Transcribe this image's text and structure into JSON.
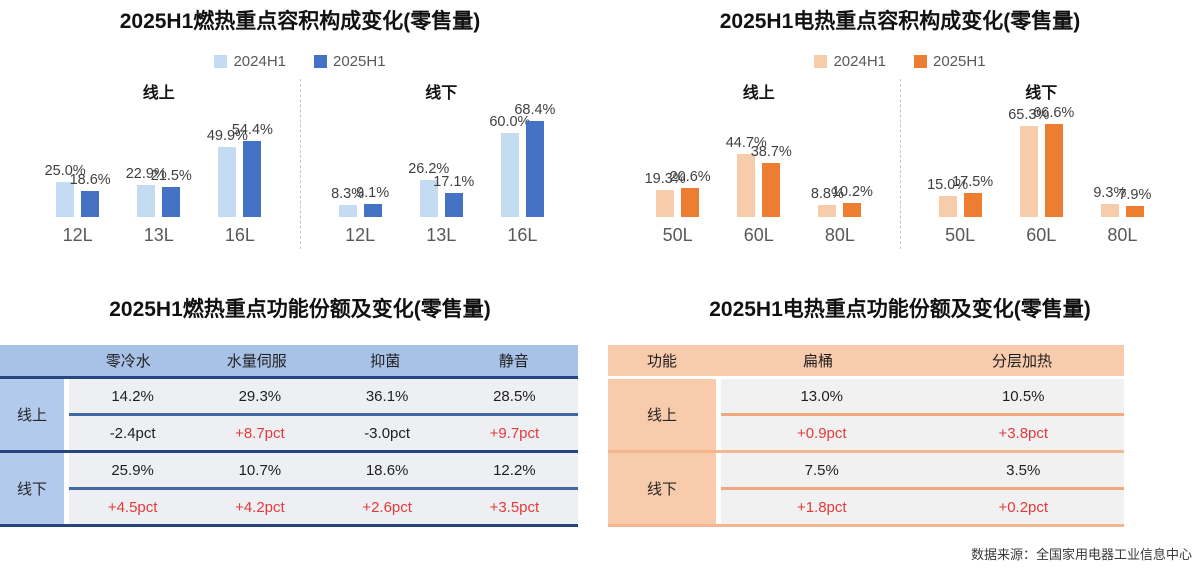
{
  "source": "数据来源：全国家用电器工业信息中心",
  "colors": {
    "increase": "#E23B3B",
    "decrease": "#1F1F1F"
  },
  "chart_data": [
    {
      "type": "bar",
      "title": "2025H1燃热重点容积构成变化(零售量)",
      "legend": [
        "2024H1",
        "2025H1"
      ],
      "legend_position": "top",
      "colors": [
        "#C3DCF2",
        "#4472C4"
      ],
      "value_suffix": "%",
      "ylim": [
        0,
        75
      ],
      "grid": false,
      "groups": [
        {
          "label": "线上",
          "categories": [
            "12L",
            "13L",
            "16L"
          ],
          "series": [
            {
              "name": "2024H1",
              "values": [
                25.0,
                22.9,
                49.9
              ]
            },
            {
              "name": "2025H1",
              "values": [
                18.6,
                21.5,
                54.4
              ]
            }
          ]
        },
        {
          "label": "线下",
          "categories": [
            "12L",
            "13L",
            "16L"
          ],
          "series": [
            {
              "name": "2024H1",
              "values": [
                8.3,
                26.2,
                60.0
              ]
            },
            {
              "name": "2025H1",
              "values": [
                9.1,
                17.1,
                68.4
              ]
            }
          ]
        }
      ]
    },
    {
      "type": "bar",
      "title": "2025H1电热重点容积构成变化(零售量)",
      "legend": [
        "2024H1",
        "2025H1"
      ],
      "legend_position": "top",
      "colors": [
        "#F6CCAB",
        "#ED7D31"
      ],
      "value_suffix": "%",
      "ylim": [
        0,
        75
      ],
      "grid": false,
      "groups": [
        {
          "label": "线上",
          "categories": [
            "50L",
            "60L",
            "80L"
          ],
          "series": [
            {
              "name": "2024H1",
              "values": [
                19.3,
                44.7,
                8.8
              ]
            },
            {
              "name": "2025H1",
              "values": [
                20.6,
                38.7,
                10.2
              ]
            }
          ]
        },
        {
          "label": "线下",
          "categories": [
            "50L",
            "60L",
            "80L"
          ],
          "series": [
            {
              "name": "2024H1",
              "values": [
                15.0,
                65.3,
                9.3
              ]
            },
            {
              "name": "2025H1",
              "values": [
                17.5,
                66.6,
                7.9
              ]
            }
          ]
        }
      ]
    },
    {
      "type": "table",
      "title": "2025H1燃热重点功能份额及变化(零售量)",
      "columns": [
        "",
        "零冷水",
        "水量伺服",
        "抑菌",
        "静音"
      ],
      "rows": [
        {
          "label": "线上",
          "share": [
            "14.2%",
            "29.3%",
            "36.1%",
            "28.5%"
          ],
          "change": [
            "-2.4pct",
            "+8.7pct",
            "-3.0pct",
            "+9.7pct"
          ]
        },
        {
          "label": "线下",
          "share": [
            "25.9%",
            "10.7%",
            "18.6%",
            "12.2%"
          ],
          "change": [
            "+4.5pct",
            "+4.2pct",
            "+2.6pct",
            "+3.5pct"
          ]
        }
      ],
      "theme": {
        "header_bg": "#A7C1E7",
        "label_bg": "#B3CAEC",
        "cell_bg": "#EDEFF2",
        "sub_line": "#4468A5",
        "group_sep": "#26457F",
        "header_sep": "#26457F"
      }
    },
    {
      "type": "table",
      "title": "2025H1电热重点功能份额及变化(零售量)",
      "columns": [
        "功能",
        "扁桶",
        "分层加热"
      ],
      "rows": [
        {
          "label": "线上",
          "share": [
            "13.0%",
            "10.5%"
          ],
          "change": [
            "+0.9pct",
            "+3.8pct"
          ]
        },
        {
          "label": "线下",
          "share": [
            "7.5%",
            "3.5%"
          ],
          "change": [
            "+1.8pct",
            "+0.2pct"
          ]
        }
      ],
      "theme": {
        "header_bg": "#F7CBAB",
        "label_bg": "#F7CBAB",
        "cell_bg": "#F1F1F1",
        "sub_line": "#F0A87D",
        "group_sep": "#F3B68F",
        "header_sep": "#FFFFFF"
      }
    }
  ]
}
